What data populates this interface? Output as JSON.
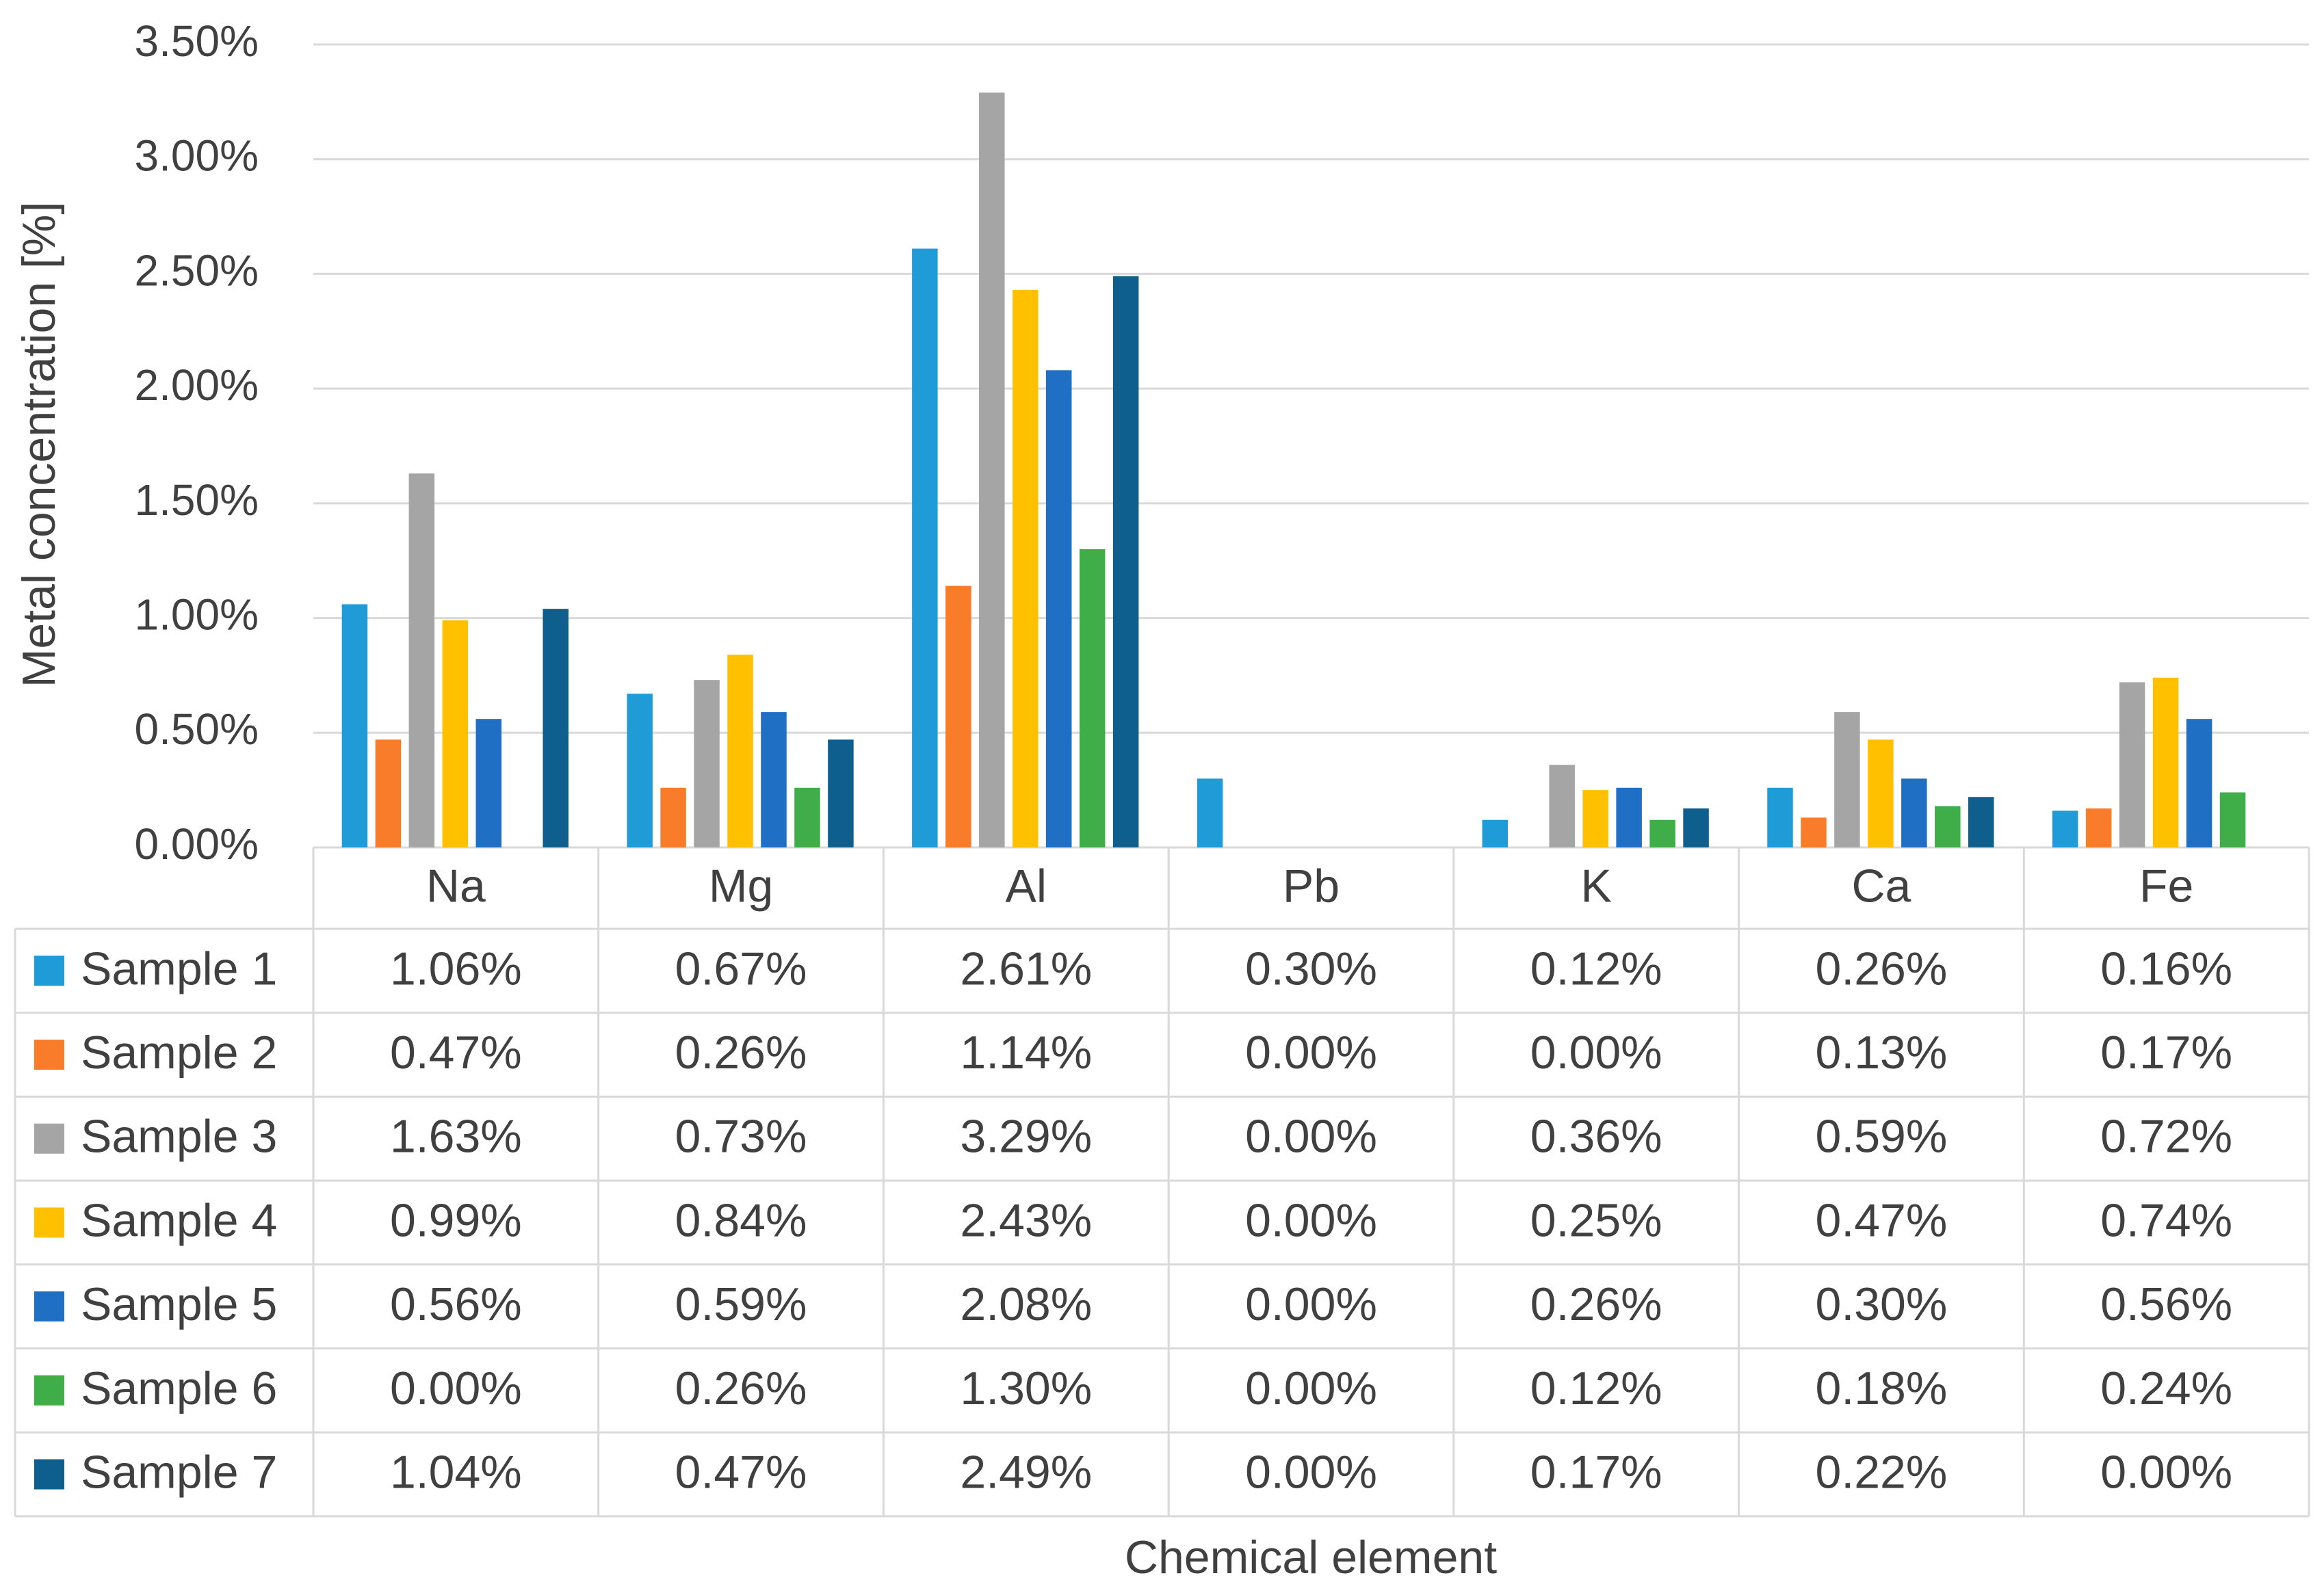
{
  "chart_data": {
    "type": "bar",
    "y_label": "Metal concentration [%]",
    "x_label": "Chemical element",
    "categories": [
      "Na",
      "Mg",
      "Al",
      "Pb",
      "K",
      "Ca",
      "Fe"
    ],
    "ylim": [
      0,
      3.5
    ],
    "yticks": [
      {
        "value": 0,
        "label": "0.00%"
      },
      {
        "value": 0.5,
        "label": "0.50%"
      },
      {
        "value": 1,
        "label": "1.00%"
      },
      {
        "value": 1.5,
        "label": "1.50%"
      },
      {
        "value": 2,
        "label": "2.00%"
      },
      {
        "value": 2.5,
        "label": "2.50%"
      },
      {
        "value": 3,
        "label": "3.00%"
      },
      {
        "value": 3.5,
        "label": "3.50%"
      }
    ],
    "grid": true,
    "series": [
      {
        "name": "Sample 1",
        "color": "#1f9bd7",
        "values": [
          1.06,
          0.67,
          2.61,
          0.3,
          0.12,
          0.26,
          0.16
        ],
        "value_labels": [
          "1.06%",
          "0.67%",
          "2.61%",
          "0.30%",
          "0.12%",
          "0.26%",
          "0.16%"
        ]
      },
      {
        "name": "Sample 2",
        "color": "#f97c2b",
        "values": [
          0.47,
          0.26,
          1.14,
          0.0,
          0.0,
          0.13,
          0.17
        ],
        "value_labels": [
          "0.47%",
          "0.26%",
          "1.14%",
          "0.00%",
          "0.00%",
          "0.13%",
          "0.17%"
        ]
      },
      {
        "name": "Sample 3",
        "color": "#a5a5a5",
        "values": [
          1.63,
          0.73,
          3.29,
          0.0,
          0.36,
          0.59,
          0.72
        ],
        "value_labels": [
          "1.63%",
          "0.73%",
          "3.29%",
          "0.00%",
          "0.36%",
          "0.59%",
          "0.72%"
        ]
      },
      {
        "name": "Sample 4",
        "color": "#ffc000",
        "values": [
          0.99,
          0.84,
          2.43,
          0.0,
          0.25,
          0.47,
          0.74
        ],
        "value_labels": [
          "0.99%",
          "0.84%",
          "2.43%",
          "0.00%",
          "0.25%",
          "0.47%",
          "0.74%"
        ]
      },
      {
        "name": "Sample 5",
        "color": "#1f6fc5",
        "values": [
          0.56,
          0.59,
          2.08,
          0.0,
          0.26,
          0.3,
          0.56
        ],
        "value_labels": [
          "0.56%",
          "0.59%",
          "2.08%",
          "0.00%",
          "0.26%",
          "0.30%",
          "0.56%"
        ]
      },
      {
        "name": "Sample 6",
        "color": "#3fae49",
        "values": [
          0.0,
          0.26,
          1.3,
          0.0,
          0.12,
          0.18,
          0.24
        ],
        "value_labels": [
          "0.00%",
          "0.26%",
          "1.30%",
          "0.00%",
          "0.12%",
          "0.18%",
          "0.24%"
        ]
      },
      {
        "name": "Sample 7",
        "color": "#0e5f8e",
        "values": [
          1.04,
          0.47,
          2.49,
          0.0,
          0.17,
          0.22,
          0.0
        ],
        "value_labels": [
          "1.04%",
          "0.47%",
          "2.49%",
          "0.00%",
          "0.17%",
          "0.22%",
          "0.00%"
        ]
      }
    ]
  }
}
